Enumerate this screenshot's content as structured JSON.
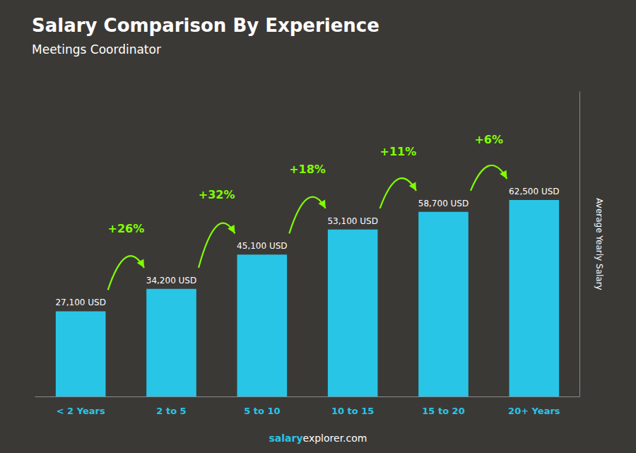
{
  "chart_data": {
    "type": "bar",
    "title": "Salary Comparison By Experience",
    "subtitle": "Meetings Coordinator",
    "categories": [
      "< 2 Years",
      "2 to 5",
      "5 to 10",
      "10 to 15",
      "15 to 20",
      "20+ Years"
    ],
    "values": [
      27100,
      34200,
      45100,
      53100,
      58700,
      62500
    ],
    "value_labels": [
      "27,100 USD",
      "34,200 USD",
      "45,100 USD",
      "53,100 USD",
      "58,700 USD",
      "62,500 USD"
    ],
    "data_labels": true,
    "color": "#29c5e6",
    "ylabel": "Average Yearly Salary",
    "ylim": [
      0,
      96875
    ],
    "grid": false,
    "tick_labels": "x",
    "annotations": [
      "+26%",
      "+32%",
      "+18%",
      "+11%",
      "+6%"
    ],
    "footer": [
      "salary",
      "explorer.com"
    ]
  }
}
